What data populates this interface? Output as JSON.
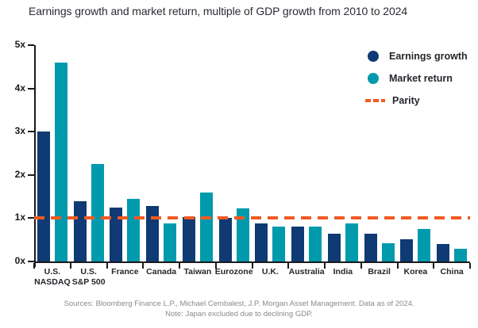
{
  "title": "Earnings growth and market return, multiple of GDP growth from 2010 to 2024",
  "colors": {
    "earnings_growth": "#0f3a73",
    "market_return": "#009aad",
    "parity": "#f05a22",
    "axis": "#1a1a1a",
    "footer_text": "#8a8a8a"
  },
  "legend": [
    {
      "label": "Earnings growth",
      "marker": "circle",
      "color": "#0f3a73"
    },
    {
      "label": "Market return",
      "marker": "circle",
      "color": "#009aad"
    },
    {
      "label": "Parity",
      "marker": "dashed-line",
      "color": "#f05a22"
    }
  ],
  "footer": {
    "sources_line": "Sources: Bloomberg Finance L.P., Michael Cembalest, J.P. Morgan Asset Management. Data as of 2024.",
    "note_line": "Note: Japan excluded due to declining GDP."
  },
  "chart_data": {
    "type": "bar",
    "title": "Earnings growth and market return, multiple of GDP growth from 2010 to 2024",
    "categories": [
      "U.S. NASDAQ",
      "U.S. S&P 500",
      "France",
      "Canada",
      "Taiwan",
      "Eurozone",
      "U.K.",
      "Australia",
      "India",
      "Brazil",
      "Korea",
      "China"
    ],
    "category_display": [
      [
        "U.S.",
        "NASDAQ"
      ],
      [
        "U.S.",
        "S&P 500"
      ],
      [
        "France"
      ],
      [
        "Canada"
      ],
      [
        "Taiwan"
      ],
      [
        "Eurozone"
      ],
      [
        "U.K."
      ],
      [
        "Australia"
      ],
      [
        "India"
      ],
      [
        "Brazil"
      ],
      [
        "Korea"
      ],
      [
        "China"
      ]
    ],
    "series": [
      {
        "name": "Earnings growth",
        "color": "#0f3a73",
        "values": [
          3.0,
          1.4,
          1.25,
          1.28,
          1.02,
          1.0,
          0.88,
          0.8,
          0.65,
          0.65,
          0.52,
          0.4
        ]
      },
      {
        "name": "Market return",
        "color": "#009aad",
        "values": [
          4.6,
          2.25,
          1.45,
          0.88,
          1.6,
          1.22,
          0.8,
          0.8,
          0.88,
          0.42,
          0.75,
          0.3
        ]
      }
    ],
    "parity_line": {
      "label": "Parity",
      "value": 1,
      "color": "#f05a22",
      "style": "dashed"
    },
    "y_axis": {
      "min": 0,
      "max": 5,
      "tick_step": 1,
      "tick_labels": [
        "0x",
        "1x",
        "2x",
        "3x",
        "4x",
        "5x"
      ]
    },
    "xlabel": "",
    "ylabel": "",
    "grid": false,
    "legend_position": "top-right"
  }
}
